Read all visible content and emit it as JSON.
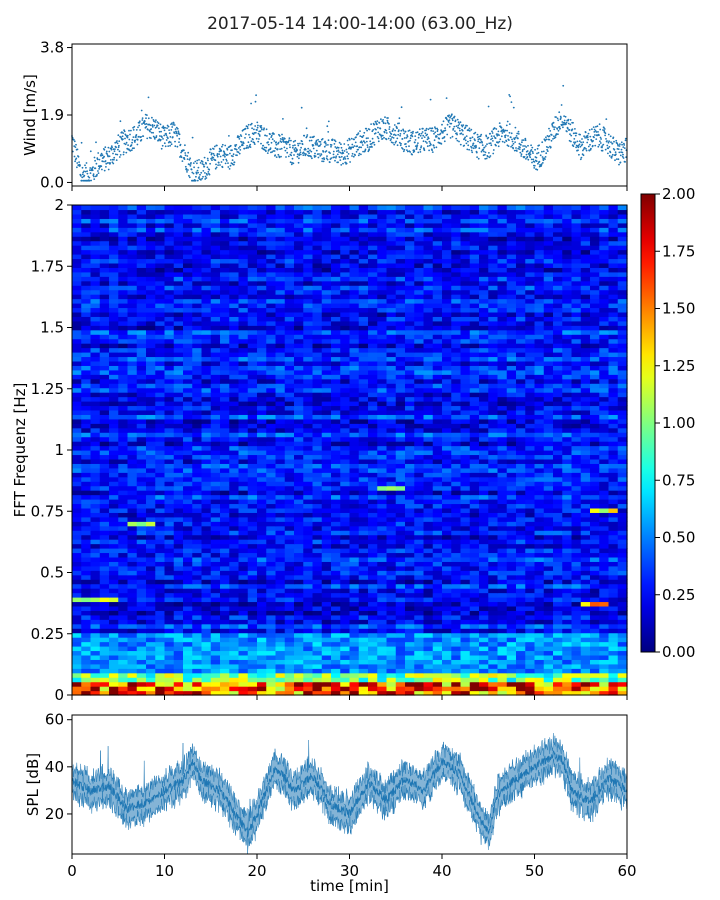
{
  "title": "2017-05-14 14:00-14:00 (63.00_Hz)",
  "chart_data": [
    {
      "type": "scatter",
      "panel": "wind",
      "xlabel": "",
      "ylabel": "Wind [m/s]",
      "xlim": [
        0,
        60
      ],
      "ylim": [
        -0.1,
        3.9
      ],
      "yticks": [
        "0.0",
        "1.9",
        "3.8"
      ],
      "ytick_values": [
        0.0,
        1.9,
        3.8
      ],
      "marker_color": "#1f77b4",
      "points_per_minute": 30,
      "trend_knots": {
        "x": [
          0,
          1,
          2,
          3,
          4,
          5,
          6,
          7,
          8,
          9,
          10,
          11,
          12,
          13,
          14,
          15,
          16,
          17,
          18,
          19,
          20,
          21,
          22,
          23,
          24,
          25,
          26,
          27,
          28,
          29,
          30,
          31,
          32,
          33,
          34,
          35,
          36,
          37,
          38,
          39,
          40,
          41,
          42,
          43,
          44,
          45,
          46,
          47,
          48,
          49,
          50,
          51,
          52,
          53,
          54,
          55,
          56,
          57,
          58,
          59,
          60
        ],
        "y": [
          1.2,
          0.2,
          0.2,
          0.6,
          0.7,
          1.0,
          1.2,
          1.3,
          1.6,
          1.5,
          1.2,
          1.4,
          0.9,
          0.3,
          0.3,
          0.6,
          0.8,
          0.7,
          1.0,
          1.3,
          1.4,
          1.2,
          1.0,
          1.0,
          0.8,
          1.0,
          1.0,
          0.9,
          0.9,
          0.8,
          0.9,
          1.1,
          1.2,
          1.5,
          1.5,
          1.4,
          1.2,
          1.1,
          1.2,
          1.2,
          1.4,
          1.6,
          1.4,
          1.2,
          1.0,
          1.0,
          1.3,
          1.4,
          1.2,
          0.9,
          0.6,
          0.9,
          1.4,
          1.9,
          1.4,
          1.0,
          1.2,
          1.3,
          1.1,
          0.8,
          0.9
        ]
      }
    },
    {
      "type": "heatmap",
      "panel": "spectrogram",
      "ylabel": "FFT Frequenz [Hz]",
      "xlim": [
        0,
        60
      ],
      "ylim": [
        0,
        2
      ],
      "yticks": [
        "0",
        "0.25",
        "0.5",
        "0.75",
        "1",
        "1.25",
        "1.5",
        "1.75",
        "2"
      ],
      "ytick_values": [
        0,
        0.25,
        0.5,
        0.75,
        1,
        1.25,
        1.5,
        1.75,
        2
      ],
      "colormap": "jet",
      "colorbar": {
        "range": [
          0,
          2
        ],
        "ticks": [
          "0.00",
          "0.25",
          "0.50",
          "0.75",
          "1.00",
          "1.25",
          "1.50",
          "1.75",
          "2.00"
        ]
      },
      "grid_columns": 60,
      "grid_rows": 110,
      "features": [
        {
          "freq_range": [
            0.0,
            0.05
          ],
          "level": 1.8
        },
        {
          "freq_range": [
            0.05,
            0.1
          ],
          "level": 1.1
        },
        {
          "freq_range": [
            0.1,
            0.25
          ],
          "level": 0.6
        },
        {
          "time_range": [
            6,
            9
          ],
          "freq": 0.7,
          "level": 1.0
        },
        {
          "time_range": [
            0,
            5
          ],
          "freq": 0.39,
          "level": 1.1
        },
        {
          "time_range": [
            33,
            36
          ],
          "freq": 0.85,
          "level": 1.1
        },
        {
          "time_range": [
            56,
            59
          ],
          "freq": 0.76,
          "level": 1.2
        },
        {
          "time_range": [
            55,
            58
          ],
          "freq": 0.37,
          "level": 1.4
        }
      ]
    },
    {
      "type": "area",
      "panel": "spl",
      "xlabel": "time [min]",
      "ylabel": "SPL [dB]",
      "xlim": [
        0,
        60
      ],
      "ylim": [
        3,
        62
      ],
      "xticks": [
        "0",
        "10",
        "20",
        "30",
        "40",
        "50",
        "60"
      ],
      "xtick_values": [
        0,
        10,
        20,
        30,
        40,
        50,
        60
      ],
      "yticks": [
        "20",
        "40",
        "60"
      ],
      "ytick_values": [
        20,
        40,
        60
      ],
      "color": "#1f77b4",
      "center": {
        "x": [
          0,
          2,
          4,
          6,
          8,
          10,
          12,
          13,
          14,
          16,
          18,
          19,
          20,
          22,
          24,
          26,
          28,
          30,
          32,
          34,
          36,
          38,
          40,
          42,
          44,
          45,
          46,
          48,
          50,
          52,
          53,
          54,
          56,
          58,
          60
        ],
        "y": [
          34,
          30,
          32,
          22,
          25,
          30,
          34,
          42,
          34,
          30,
          18,
          12,
          20,
          40,
          30,
          36,
          24,
          20,
          33,
          26,
          35,
          30,
          42,
          37,
          18,
          12,
          28,
          35,
          40,
          45,
          43,
          30,
          25,
          35,
          30
        ]
      },
      "half_width": 6
    }
  ]
}
